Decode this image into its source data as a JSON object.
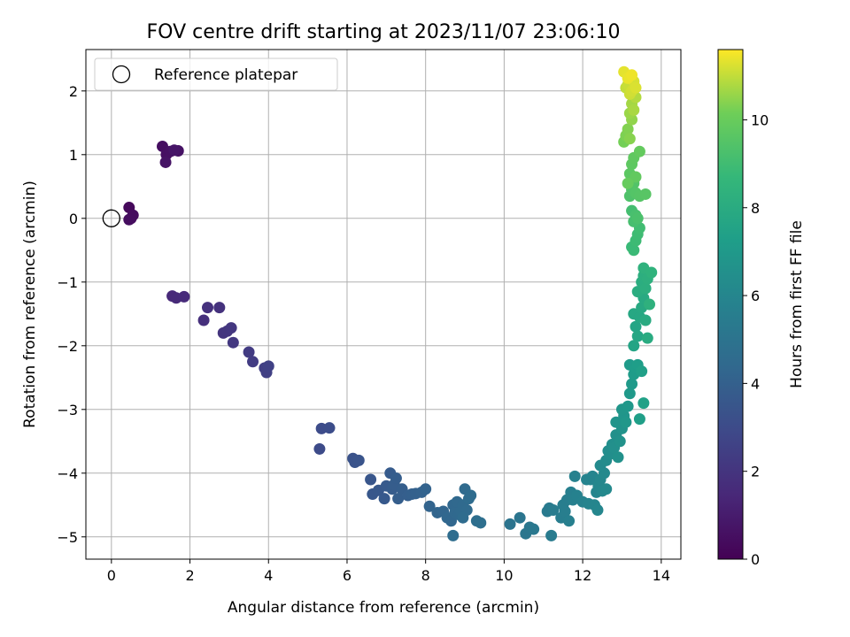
{
  "chart_data": {
    "type": "scatter",
    "title": "FOV centre drift starting at 2023/11/07 23:06:10",
    "xlabel": "Angular distance from reference (arcmin)",
    "ylabel": "Rotation from reference (arcmin)",
    "xlim": [
      -0.65,
      14.5
    ],
    "ylim": [
      -5.35,
      2.65
    ],
    "xticks": [
      0,
      2,
      4,
      6,
      8,
      10,
      12,
      14
    ],
    "yticks": [
      2,
      1,
      0,
      -1,
      -2,
      -3,
      -4,
      -5
    ],
    "grid": true,
    "legend": {
      "placement": "upper-left",
      "entries": [
        {
          "label": "Reference platepar",
          "marker": "hollow-circle"
        }
      ]
    },
    "reference_point": {
      "x": 0,
      "y": 0
    },
    "colorbar": {
      "label": "Hours from first FF file",
      "range": [
        0,
        11.6
      ],
      "ticks": [
        0,
        2,
        4,
        6,
        8,
        10
      ],
      "colormap": "viridis"
    },
    "points": [
      {
        "x": 0.45,
        "y": 0.17,
        "c": 0.3
      },
      {
        "x": 0.5,
        "y": 0.0,
        "c": 0.35
      },
      {
        "x": 0.55,
        "y": 0.05,
        "c": 0.4
      },
      {
        "x": 0.45,
        "y": -0.02,
        "c": 0.45
      },
      {
        "x": 1.3,
        "y": 1.13,
        "c": 0.5
      },
      {
        "x": 1.4,
        "y": 1.0,
        "c": 0.55
      },
      {
        "x": 1.5,
        "y": 1.05,
        "c": 0.6
      },
      {
        "x": 1.7,
        "y": 1.06,
        "c": 0.65
      },
      {
        "x": 1.38,
        "y": 0.88,
        "c": 0.7
      },
      {
        "x": 1.6,
        "y": 1.07,
        "c": 0.75
      },
      {
        "x": 1.55,
        "y": -1.22,
        "c": 1.5
      },
      {
        "x": 1.65,
        "y": -1.25,
        "c": 1.55
      },
      {
        "x": 1.85,
        "y": -1.23,
        "c": 1.6
      },
      {
        "x": 2.35,
        "y": -1.6,
        "c": 1.8
      },
      {
        "x": 2.45,
        "y": -1.4,
        "c": 1.85
      },
      {
        "x": 2.75,
        "y": -1.4,
        "c": 1.9
      },
      {
        "x": 2.85,
        "y": -1.8,
        "c": 2.0
      },
      {
        "x": 2.95,
        "y": -1.77,
        "c": 2.05
      },
      {
        "x": 3.05,
        "y": -1.72,
        "c": 2.1
      },
      {
        "x": 3.1,
        "y": -1.95,
        "c": 2.15
      },
      {
        "x": 3.5,
        "y": -2.1,
        "c": 2.3
      },
      {
        "x": 3.6,
        "y": -2.25,
        "c": 2.35
      },
      {
        "x": 3.9,
        "y": -2.35,
        "c": 2.45
      },
      {
        "x": 3.95,
        "y": -2.42,
        "c": 2.5
      },
      {
        "x": 4.0,
        "y": -2.32,
        "c": 2.55
      },
      {
        "x": 5.3,
        "y": -3.62,
        "c": 3.0
      },
      {
        "x": 5.35,
        "y": -3.3,
        "c": 3.05
      },
      {
        "x": 5.55,
        "y": -3.29,
        "c": 3.1
      },
      {
        "x": 6.15,
        "y": -3.77,
        "c": 3.3
      },
      {
        "x": 6.2,
        "y": -3.83,
        "c": 3.35
      },
      {
        "x": 6.3,
        "y": -3.8,
        "c": 3.4
      },
      {
        "x": 6.6,
        "y": -4.1,
        "c": 3.5
      },
      {
        "x": 6.65,
        "y": -4.33,
        "c": 3.55
      },
      {
        "x": 6.8,
        "y": -4.27,
        "c": 3.6
      },
      {
        "x": 6.95,
        "y": -4.4,
        "c": 3.65
      },
      {
        "x": 7.0,
        "y": -4.2,
        "c": 3.7
      },
      {
        "x": 7.1,
        "y": -4.0,
        "c": 3.75
      },
      {
        "x": 7.15,
        "y": -4.25,
        "c": 3.8
      },
      {
        "x": 7.2,
        "y": -4.18,
        "c": 3.82
      },
      {
        "x": 7.25,
        "y": -4.08,
        "c": 3.85
      },
      {
        "x": 7.3,
        "y": -4.4,
        "c": 3.88
      },
      {
        "x": 7.4,
        "y": -4.25,
        "c": 3.9
      },
      {
        "x": 7.55,
        "y": -4.35,
        "c": 3.95
      },
      {
        "x": 7.65,
        "y": -4.33,
        "c": 3.98
      },
      {
        "x": 7.75,
        "y": -4.32,
        "c": 4.0
      },
      {
        "x": 7.9,
        "y": -4.3,
        "c": 4.05
      },
      {
        "x": 8.0,
        "y": -4.25,
        "c": 4.1
      },
      {
        "x": 8.1,
        "y": -4.52,
        "c": 4.15
      },
      {
        "x": 8.3,
        "y": -4.62,
        "c": 4.2
      },
      {
        "x": 8.45,
        "y": -4.6,
        "c": 4.25
      },
      {
        "x": 8.55,
        "y": -4.7,
        "c": 4.3
      },
      {
        "x": 8.65,
        "y": -4.75,
        "c": 4.32
      },
      {
        "x": 8.7,
        "y": -4.5,
        "c": 4.35
      },
      {
        "x": 8.75,
        "y": -4.62,
        "c": 4.38
      },
      {
        "x": 8.8,
        "y": -4.45,
        "c": 4.4
      },
      {
        "x": 8.85,
        "y": -4.65,
        "c": 4.42
      },
      {
        "x": 8.9,
        "y": -4.6,
        "c": 4.45
      },
      {
        "x": 8.95,
        "y": -4.5,
        "c": 4.48
      },
      {
        "x": 9.0,
        "y": -4.25,
        "c": 4.5
      },
      {
        "x": 9.05,
        "y": -4.58,
        "c": 4.52
      },
      {
        "x": 9.1,
        "y": -4.4,
        "c": 4.55
      },
      {
        "x": 9.15,
        "y": -4.35,
        "c": 4.58
      },
      {
        "x": 8.95,
        "y": -4.7,
        "c": 4.6
      },
      {
        "x": 8.7,
        "y": -4.98,
        "c": 4.62
      },
      {
        "x": 9.3,
        "y": -4.75,
        "c": 4.7
      },
      {
        "x": 9.4,
        "y": -4.78,
        "c": 4.75
      },
      {
        "x": 10.15,
        "y": -4.8,
        "c": 5.0
      },
      {
        "x": 10.4,
        "y": -4.7,
        "c": 5.1
      },
      {
        "x": 10.55,
        "y": -4.95,
        "c": 5.15
      },
      {
        "x": 10.65,
        "y": -4.85,
        "c": 5.2
      },
      {
        "x": 10.75,
        "y": -4.88,
        "c": 5.25
      },
      {
        "x": 11.1,
        "y": -4.6,
        "c": 5.35
      },
      {
        "x": 11.15,
        "y": -4.55,
        "c": 5.38
      },
      {
        "x": 11.2,
        "y": -4.98,
        "c": 5.4
      },
      {
        "x": 11.25,
        "y": -4.58,
        "c": 5.45
      },
      {
        "x": 11.45,
        "y": -4.7,
        "c": 5.5
      },
      {
        "x": 11.5,
        "y": -4.5,
        "c": 5.55
      },
      {
        "x": 11.55,
        "y": -4.6,
        "c": 5.58
      },
      {
        "x": 11.6,
        "y": -4.42,
        "c": 5.6
      },
      {
        "x": 11.65,
        "y": -4.75,
        "c": 5.62
      },
      {
        "x": 11.7,
        "y": -4.3,
        "c": 5.65
      },
      {
        "x": 11.75,
        "y": -4.42,
        "c": 5.68
      },
      {
        "x": 11.8,
        "y": -4.05,
        "c": 5.72
      },
      {
        "x": 11.85,
        "y": -4.35,
        "c": 5.75
      },
      {
        "x": 12.0,
        "y": -4.45,
        "c": 5.8
      },
      {
        "x": 12.1,
        "y": -4.1,
        "c": 5.85
      },
      {
        "x": 12.15,
        "y": -4.48,
        "c": 5.88
      },
      {
        "x": 12.2,
        "y": -4.1,
        "c": 5.9
      },
      {
        "x": 12.25,
        "y": -4.05,
        "c": 5.92
      },
      {
        "x": 12.3,
        "y": -4.5,
        "c": 5.95
      },
      {
        "x": 12.35,
        "y": -4.3,
        "c": 5.98
      },
      {
        "x": 12.38,
        "y": -4.58,
        "c": 6.0
      },
      {
        "x": 12.4,
        "y": -4.2,
        "c": 6.05
      },
      {
        "x": 12.45,
        "y": -4.1,
        "c": 6.08
      },
      {
        "x": 12.5,
        "y": -4.28,
        "c": 6.1
      },
      {
        "x": 12.55,
        "y": -4.0,
        "c": 6.15
      },
      {
        "x": 12.6,
        "y": -4.25,
        "c": 6.18
      },
      {
        "x": 12.45,
        "y": -3.88,
        "c": 6.2
      },
      {
        "x": 12.6,
        "y": -3.8,
        "c": 6.3
      },
      {
        "x": 12.65,
        "y": -3.65,
        "c": 6.35
      },
      {
        "x": 12.7,
        "y": -3.7,
        "c": 6.4
      },
      {
        "x": 12.75,
        "y": -3.55,
        "c": 6.45
      },
      {
        "x": 12.8,
        "y": -3.6,
        "c": 6.5
      },
      {
        "x": 12.85,
        "y": -3.4,
        "c": 6.55
      },
      {
        "x": 12.9,
        "y": -3.75,
        "c": 6.6
      },
      {
        "x": 12.95,
        "y": -3.5,
        "c": 6.65
      },
      {
        "x": 13.0,
        "y": -3.3,
        "c": 6.7
      },
      {
        "x": 12.85,
        "y": -3.2,
        "c": 6.75
      },
      {
        "x": 13.05,
        "y": -3.1,
        "c": 6.8
      },
      {
        "x": 13.0,
        "y": -3.0,
        "c": 6.85
      },
      {
        "x": 13.1,
        "y": -3.2,
        "c": 6.9
      },
      {
        "x": 13.15,
        "y": -2.95,
        "c": 6.95
      },
      {
        "x": 13.2,
        "y": -2.75,
        "c": 7.0
      },
      {
        "x": 13.25,
        "y": -2.6,
        "c": 7.05
      },
      {
        "x": 13.2,
        "y": -2.3,
        "c": 7.1
      },
      {
        "x": 13.3,
        "y": -2.45,
        "c": 7.15
      },
      {
        "x": 13.35,
        "y": -2.35,
        "c": 7.2
      },
      {
        "x": 13.4,
        "y": -2.3,
        "c": 7.25
      },
      {
        "x": 13.45,
        "y": -3.15,
        "c": 7.3
      },
      {
        "x": 13.5,
        "y": -2.4,
        "c": 7.35
      },
      {
        "x": 13.55,
        "y": -2.9,
        "c": 7.4
      },
      {
        "x": 13.3,
        "y": -2.0,
        "c": 7.6
      },
      {
        "x": 13.35,
        "y": -1.7,
        "c": 7.65
      },
      {
        "x": 13.4,
        "y": -1.85,
        "c": 7.7
      },
      {
        "x": 13.3,
        "y": -1.5,
        "c": 7.75
      },
      {
        "x": 13.45,
        "y": -1.55,
        "c": 7.8
      },
      {
        "x": 13.5,
        "y": -1.4,
        "c": 7.85
      },
      {
        "x": 13.55,
        "y": -1.25,
        "c": 7.9
      },
      {
        "x": 13.6,
        "y": -1.6,
        "c": 7.95
      },
      {
        "x": 13.65,
        "y": -1.88,
        "c": 8.0
      },
      {
        "x": 13.4,
        "y": -1.15,
        "c": 8.05
      },
      {
        "x": 13.5,
        "y": -1.0,
        "c": 8.1
      },
      {
        "x": 13.55,
        "y": -0.9,
        "c": 8.15
      },
      {
        "x": 13.6,
        "y": -1.1,
        "c": 8.2
      },
      {
        "x": 13.65,
        "y": -0.95,
        "c": 8.25
      },
      {
        "x": 13.7,
        "y": -1.35,
        "c": 8.3
      },
      {
        "x": 13.55,
        "y": -0.78,
        "c": 8.35
      },
      {
        "x": 13.75,
        "y": -0.85,
        "c": 8.4
      },
      {
        "x": 13.25,
        "y": -0.45,
        "c": 8.8
      },
      {
        "x": 13.3,
        "y": -0.5,
        "c": 8.85
      },
      {
        "x": 13.35,
        "y": -0.35,
        "c": 8.9
      },
      {
        "x": 13.4,
        "y": -0.25,
        "c": 8.95
      },
      {
        "x": 13.45,
        "y": -0.15,
        "c": 9.0
      },
      {
        "x": 13.25,
        "y": 0.12,
        "c": 9.1
      },
      {
        "x": 13.3,
        "y": -0.05,
        "c": 9.15
      },
      {
        "x": 13.35,
        "y": 0.05,
        "c": 9.2
      },
      {
        "x": 13.4,
        "y": 0.0,
        "c": 9.25
      },
      {
        "x": 13.2,
        "y": 0.35,
        "c": 9.35
      },
      {
        "x": 13.25,
        "y": 0.45,
        "c": 9.4
      },
      {
        "x": 13.3,
        "y": 0.55,
        "c": 9.45
      },
      {
        "x": 13.35,
        "y": 0.4,
        "c": 9.5
      },
      {
        "x": 13.45,
        "y": 0.35,
        "c": 9.55
      },
      {
        "x": 13.6,
        "y": 0.38,
        "c": 9.6
      },
      {
        "x": 13.2,
        "y": 0.7,
        "c": 9.7
      },
      {
        "x": 13.25,
        "y": 0.85,
        "c": 9.75
      },
      {
        "x": 13.3,
        "y": 0.95,
        "c": 9.8
      },
      {
        "x": 13.35,
        "y": 0.65,
        "c": 9.85
      },
      {
        "x": 13.45,
        "y": 1.05,
        "c": 9.9
      },
      {
        "x": 13.15,
        "y": 0.55,
        "c": 9.95
      },
      {
        "x": 13.05,
        "y": 1.2,
        "c": 10.2
      },
      {
        "x": 13.1,
        "y": 1.3,
        "c": 10.3
      },
      {
        "x": 13.15,
        "y": 1.4,
        "c": 10.35
      },
      {
        "x": 13.2,
        "y": 1.25,
        "c": 10.4
      },
      {
        "x": 13.25,
        "y": 1.55,
        "c": 10.5
      },
      {
        "x": 13.2,
        "y": 1.65,
        "c": 10.6
      },
      {
        "x": 13.25,
        "y": 1.8,
        "c": 10.7
      },
      {
        "x": 13.3,
        "y": 1.7,
        "c": 10.75
      },
      {
        "x": 13.35,
        "y": 1.9,
        "c": 10.85
      },
      {
        "x": 13.1,
        "y": 2.05,
        "c": 11.0
      },
      {
        "x": 13.15,
        "y": 2.1,
        "c": 11.05
      },
      {
        "x": 13.2,
        "y": 1.95,
        "c": 11.1
      },
      {
        "x": 13.25,
        "y": 2.0,
        "c": 11.15
      },
      {
        "x": 13.3,
        "y": 2.15,
        "c": 11.2
      },
      {
        "x": 13.35,
        "y": 2.05,
        "c": 11.25
      },
      {
        "x": 13.05,
        "y": 2.3,
        "c": 11.35
      },
      {
        "x": 13.15,
        "y": 2.2,
        "c": 11.4
      },
      {
        "x": 13.25,
        "y": 2.25,
        "c": 11.45
      }
    ]
  }
}
